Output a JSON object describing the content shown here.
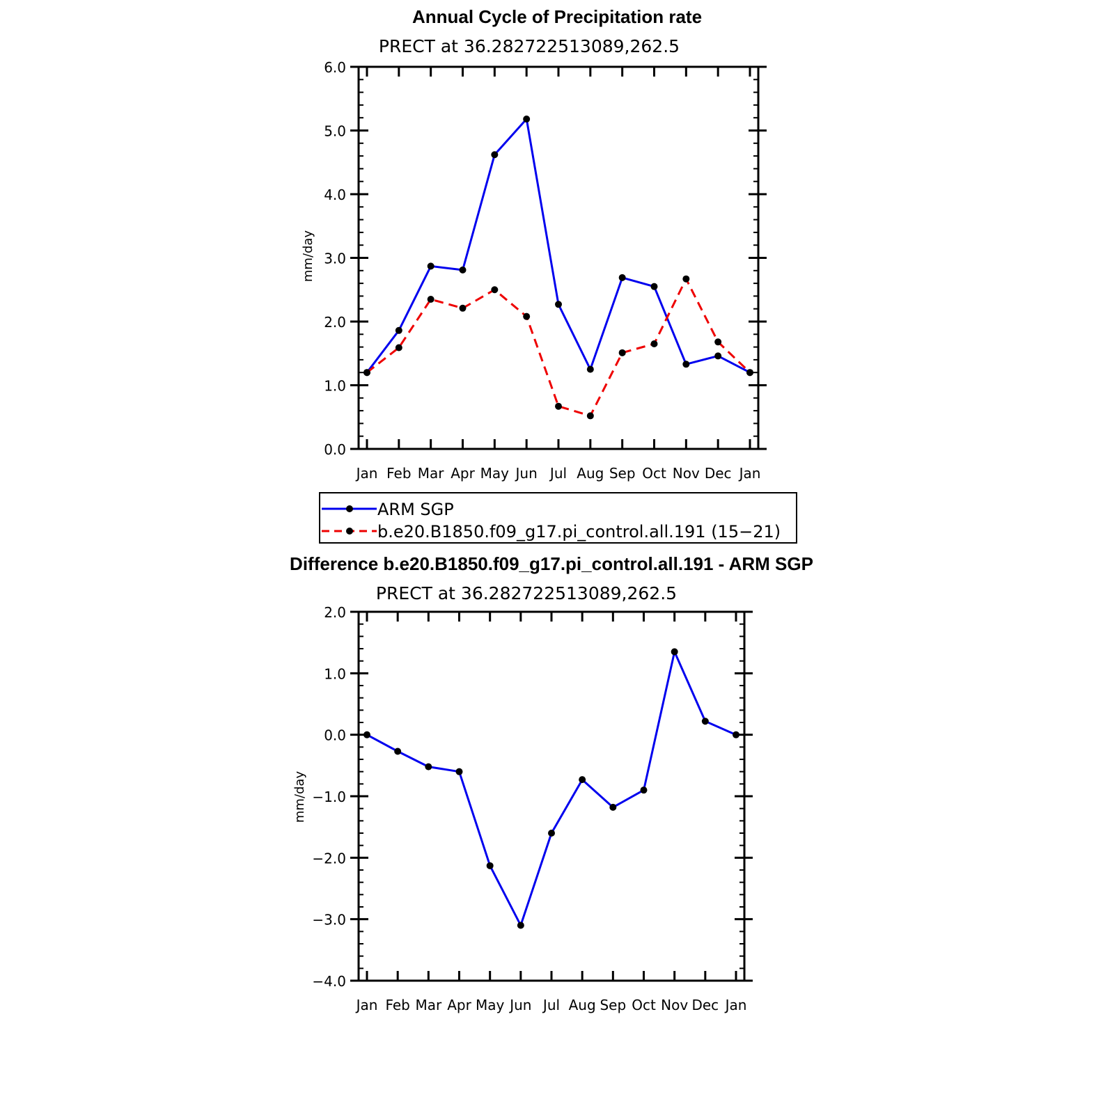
{
  "chart_data": [
    {
      "type": "line",
      "title": "Annual Cycle of Precipitation rate",
      "subtitle": "PRECT at 36.282722513089,262.5",
      "ylabel": "mm/day",
      "xlabel": "",
      "categories": [
        "Jan",
        "Feb",
        "Mar",
        "Apr",
        "May",
        "Jun",
        "Jul",
        "Aug",
        "Sep",
        "Oct",
        "Nov",
        "Dec",
        "Jan"
      ],
      "ylim": [
        0,
        6
      ],
      "yticks": [
        "0.0",
        "1.0",
        "2.0",
        "3.0",
        "4.0",
        "5.0",
        "6.0"
      ],
      "legend_position": "bottom",
      "series": [
        {
          "name": "ARM SGP",
          "color": "#0000ee",
          "style": "solid",
          "values": [
            1.2,
            1.86,
            2.87,
            2.81,
            4.62,
            5.18,
            2.27,
            1.25,
            2.69,
            2.55,
            1.33,
            1.46,
            1.2
          ]
        },
        {
          "name": "b.e20.B1850.f09_g17.pi_control.all.191 (15−21)",
          "color": "#ee0000",
          "style": "dashed",
          "values": [
            1.2,
            1.59,
            2.35,
            2.21,
            2.5,
            2.08,
            0.67,
            0.52,
            1.51,
            1.65,
            2.67,
            1.68,
            1.2
          ]
        }
      ]
    },
    {
      "type": "line",
      "title": "Difference b.e20.B1850.f09_g17.pi_control.all.191 - ARM SGP",
      "subtitle": "PRECT at 36.282722513089,262.5",
      "ylabel": "mm/day",
      "xlabel": "",
      "categories": [
        "Jan",
        "Feb",
        "Mar",
        "Apr",
        "May",
        "Jun",
        "Jul",
        "Aug",
        "Sep",
        "Oct",
        "Nov",
        "Dec",
        "Jan"
      ],
      "ylim": [
        -4,
        2
      ],
      "yticks": [
        "−4.0",
        "−3.0",
        "−2.0",
        "−1.0",
        "0.0",
        "1.0",
        "2.0"
      ],
      "series": [
        {
          "color": "#0000ee",
          "style": "solid",
          "values": [
            0.0,
            -0.27,
            -0.52,
            -0.6,
            -2.13,
            -3.1,
            -1.6,
            -0.73,
            -1.18,
            -0.9,
            1.35,
            0.22,
            0.0
          ]
        }
      ]
    }
  ]
}
